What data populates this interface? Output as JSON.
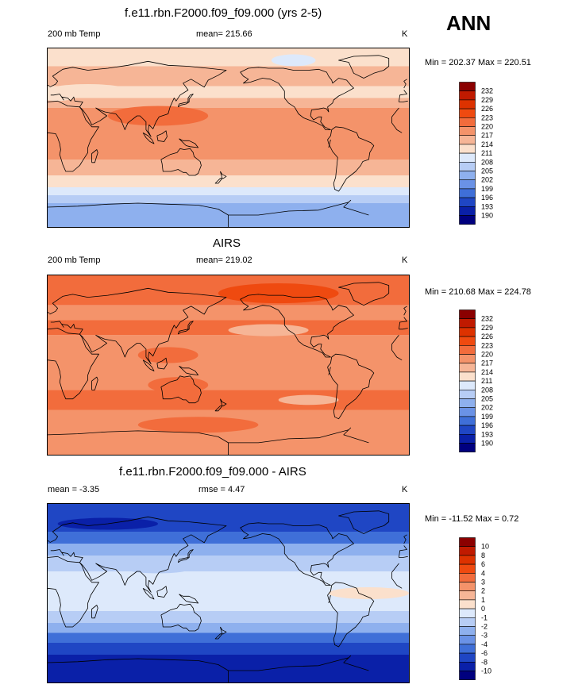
{
  "page": {
    "season": "ANN"
  },
  "panels": [
    {
      "title": "f.e11.rbn.F2000.f09_f09.000 (yrs 2-5)",
      "left_label": "200 mb Temp",
      "center_label": "mean= 215.66",
      "units": "K",
      "minmax": "Min = 202.37 Max = 220.51"
    },
    {
      "title": "AIRS",
      "left_label": "200 mb Temp",
      "center_label": "mean= 219.02",
      "units": "K",
      "minmax": "Min = 210.68 Max = 224.78"
    },
    {
      "title": "f.e11.rbn.F2000.f09_f09.000 - AIRS",
      "left_label": "mean =  -3.35",
      "center_label": "rmse =    4.47",
      "units": "K",
      "minmax": "Min = -11.52 Max =   0.72"
    }
  ],
  "chart_data": [
    {
      "type": "heatmap",
      "title": "f.e11.rbn.F2000.f09_f09.000 (yrs 2-5)",
      "variable": "200 mb Temp",
      "units": "K",
      "mean": 215.66,
      "min": 202.37,
      "max": 220.51,
      "levels": [
        "232",
        "229",
        "226",
        "223",
        "220",
        "217",
        "214",
        "211",
        "208",
        "205",
        "202",
        "199",
        "196",
        "193",
        "190"
      ],
      "colors": [
        "#8b0000",
        "#c01a00",
        "#dd3200",
        "#ef4a10",
        "#f26c3c",
        "#f4936a",
        "#f6b596",
        "#fbe0cc",
        "#dde9fb",
        "#b7cdf5",
        "#8eb0ee",
        "#6a92e6",
        "#3f6fd8",
        "#1f46c4",
        "#0a20a8",
        "#00007f"
      ],
      "bands": [
        {
          "lat_top": 90,
          "lat_bottom": 72,
          "color": 7
        },
        {
          "lat_top": 72,
          "lat_bottom": 52,
          "color": 6
        },
        {
          "lat_top": 52,
          "lat_bottom": 40,
          "color": 7
        },
        {
          "lat_top": 40,
          "lat_bottom": 30,
          "color": 6
        },
        {
          "lat_top": 30,
          "lat_bottom": -22,
          "color": 5
        },
        {
          "lat_top": -22,
          "lat_bottom": -38,
          "color": 6
        },
        {
          "lat_top": -38,
          "lat_bottom": -50,
          "color": 7
        },
        {
          "lat_top": -50,
          "lat_bottom": -58,
          "color": 8
        },
        {
          "lat_top": -58,
          "lat_bottom": -66,
          "color": 9
        },
        {
          "lat_top": -66,
          "lat_bottom": -90,
          "color": 10
        }
      ],
      "patches": [
        {
          "lon": -115,
          "lat": 78,
          "rlon": 22,
          "rlat": 6,
          "color": 8
        },
        {
          "lon": 110,
          "lat": 22,
          "rlon": 50,
          "rlat": 10,
          "color": 4
        },
        {
          "lon": 10,
          "lat": 42,
          "rlon": 18,
          "rlat": 5,
          "color": 7
        },
        {
          "lon": 40,
          "lat": 48,
          "rlon": 40,
          "rlat": 6,
          "color": 7
        }
      ]
    },
    {
      "type": "heatmap",
      "title": "AIRS",
      "variable": "200 mb Temp",
      "units": "K",
      "mean": 219.02,
      "min": 210.68,
      "max": 224.78,
      "levels": [
        "232",
        "229",
        "226",
        "223",
        "220",
        "217",
        "214",
        "211",
        "208",
        "205",
        "202",
        "199",
        "196",
        "193",
        "190"
      ],
      "colors": [
        "#8b0000",
        "#c01a00",
        "#dd3200",
        "#ef4a10",
        "#f26c3c",
        "#f4936a",
        "#f6b596",
        "#fbe0cc",
        "#dde9fb",
        "#b7cdf5",
        "#8eb0ee",
        "#6a92e6",
        "#3f6fd8",
        "#1f46c4",
        "#0a20a8",
        "#00007f"
      ],
      "bands": [
        {
          "lat_top": 90,
          "lat_bottom": 60,
          "color": 4
        },
        {
          "lat_top": 60,
          "lat_bottom": 45,
          "color": 5
        },
        {
          "lat_top": 45,
          "lat_bottom": 30,
          "color": 4
        },
        {
          "lat_top": 30,
          "lat_bottom": -25,
          "color": 5
        },
        {
          "lat_top": -25,
          "lat_bottom": -45,
          "color": 4
        },
        {
          "lat_top": -45,
          "lat_bottom": -90,
          "color": 5
        }
      ],
      "patches": [
        {
          "lon": -130,
          "lat": 72,
          "rlon": 60,
          "rlat": 10,
          "color": 3
        },
        {
          "lon": 120,
          "lat": 10,
          "rlon": 30,
          "rlat": 8,
          "color": 4
        },
        {
          "lon": 130,
          "lat": -20,
          "rlon": 30,
          "rlat": 8,
          "color": 4
        },
        {
          "lon": 150,
          "lat": -60,
          "rlon": 60,
          "rlat": 8,
          "color": 4
        },
        {
          "lon": -140,
          "lat": 35,
          "rlon": 40,
          "rlat": 6,
          "color": 6
        },
        {
          "lon": -100,
          "lat": -35,
          "rlon": 30,
          "rlat": 5,
          "color": 6
        }
      ]
    },
    {
      "type": "heatmap",
      "title": "f.e11.rbn.F2000.f09_f09.000 - AIRS",
      "units": "K",
      "mean": -3.35,
      "rmse": 4.47,
      "min": -11.52,
      "max": 0.72,
      "levels": [
        "10",
        "8",
        "6",
        "4",
        "3",
        "2",
        "1",
        "0",
        "-1",
        "-2",
        "-3",
        "-4",
        "-6",
        "-8",
        "-10"
      ],
      "colors": [
        "#8b0000",
        "#c01a00",
        "#dd3200",
        "#ef4a10",
        "#f26c3c",
        "#f4936a",
        "#f6b596",
        "#fbe0cc",
        "#dde9fb",
        "#b7cdf5",
        "#8eb0ee",
        "#6a92e6",
        "#3f6fd8",
        "#1f46c4",
        "#0a20a8",
        "#00007f"
      ],
      "bands": [
        {
          "lat_top": 90,
          "lat_bottom": 62,
          "color": 13
        },
        {
          "lat_top": 62,
          "lat_bottom": 50,
          "color": 12
        },
        {
          "lat_top": 50,
          "lat_bottom": 38,
          "color": 10
        },
        {
          "lat_top": 38,
          "lat_bottom": 22,
          "color": 9
        },
        {
          "lat_top": 22,
          "lat_bottom": -18,
          "color": 8
        },
        {
          "lat_top": -18,
          "lat_bottom": -30,
          "color": 9
        },
        {
          "lat_top": -30,
          "lat_bottom": -40,
          "color": 10
        },
        {
          "lat_top": -40,
          "lat_bottom": -50,
          "color": 12
        },
        {
          "lat_top": -50,
          "lat_bottom": -62,
          "color": 13
        },
        {
          "lat_top": -62,
          "lat_bottom": -90,
          "color": 14
        }
      ],
      "patches": [
        {
          "lon": 110,
          "lat": 28,
          "rlon": 40,
          "rlat": 8,
          "color": 9
        },
        {
          "lon": -40,
          "lat": 0,
          "rlon": 40,
          "rlat": 6,
          "color": 7
        },
        {
          "lon": 60,
          "lat": 70,
          "rlon": 50,
          "rlat": 6,
          "color": 14
        }
      ]
    }
  ]
}
